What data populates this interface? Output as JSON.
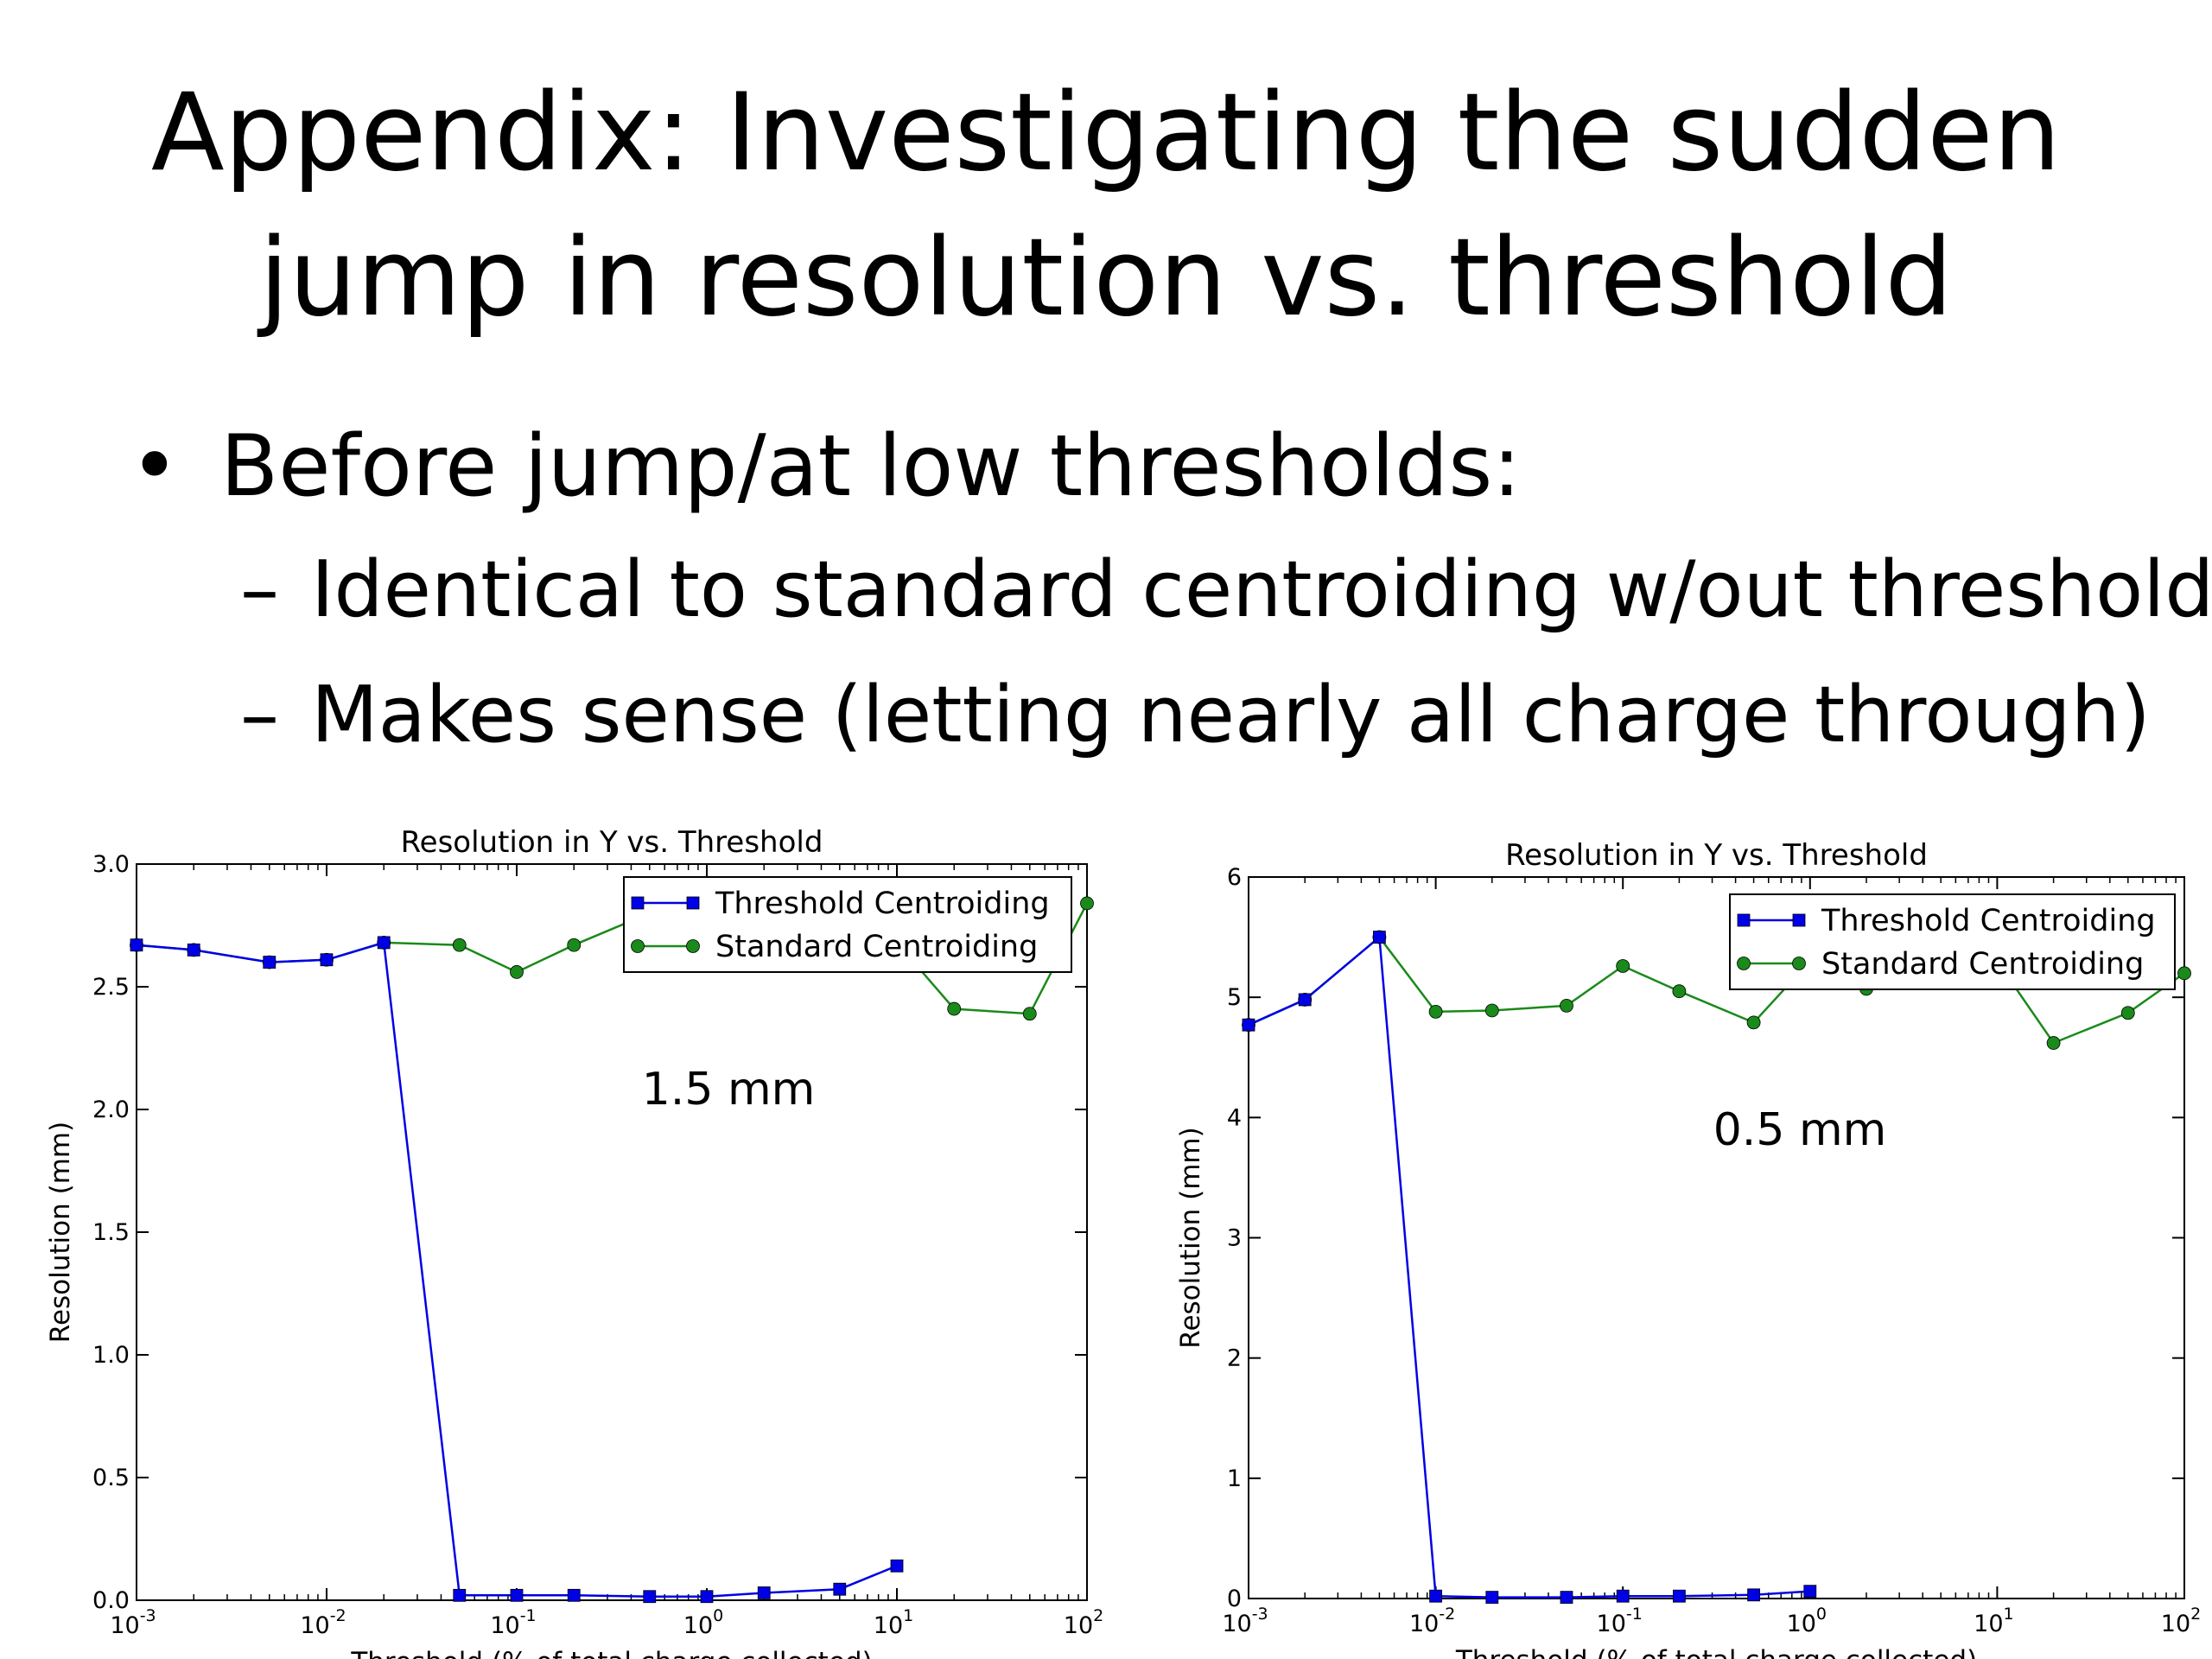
{
  "slide": {
    "title_line1": "Appendix: Investigating the sudden",
    "title_line2": "jump in resolution vs. threshold",
    "bullet": "Before jump/at low thresholds:",
    "sub_bullets": [
      "Identical to standard centroiding w/out threshold",
      "Makes sense (letting nearly all charge through)"
    ],
    "bullet_glyph": "•",
    "dash_glyph": "–"
  },
  "colors": {
    "threshold": "#0000e6",
    "standard": "#1a8a1a"
  },
  "chart_data": [
    {
      "type": "line",
      "title": "Resolution in Y vs. Threshold",
      "xlabel": "Threshold (% of total charge collected)",
      "ylabel": "Resolution (mm)",
      "xscale": "log",
      "xlim": [
        0.001,
        100
      ],
      "ylim": [
        0,
        3.0
      ],
      "xtick_values": [
        0.001,
        0.01,
        0.1,
        1,
        10,
        100
      ],
      "xtick_bases": [
        "10",
        "10",
        "10",
        "10",
        "10",
        "10"
      ],
      "xtick_exponents": [
        "-3",
        "-2",
        "-1",
        "0",
        "1",
        "2"
      ],
      "ytick_values": [
        0,
        0.5,
        1.0,
        1.5,
        2.0,
        2.5,
        3.0
      ],
      "ytick_labels": [
        "0.0",
        "0.5",
        "1.0",
        "1.5",
        "2.0",
        "2.5",
        "3.0"
      ],
      "annotation": "1.5 mm",
      "legend_position": "top-right",
      "series": [
        {
          "name": "Threshold Centroiding",
          "marker": "square",
          "x": [
            0.001,
            0.002,
            0.005,
            0.01,
            0.02,
            0.05,
            0.1,
            0.2,
            0.5,
            1,
            2,
            5,
            10
          ],
          "y": [
            2.67,
            2.65,
            2.6,
            2.61,
            2.68,
            0.02,
            0.02,
            0.02,
            0.015,
            0.015,
            0.03,
            0.045,
            0.14
          ]
        },
        {
          "name": "Standard Centroiding",
          "marker": "circle",
          "x": [
            0.001,
            0.002,
            0.005,
            0.01,
            0.02,
            0.05,
            0.1,
            0.2,
            0.5,
            1,
            2,
            5,
            10,
            20,
            50,
            100
          ],
          "y": [
            2.67,
            2.65,
            2.6,
            2.61,
            2.68,
            2.67,
            2.56,
            2.67,
            2.8,
            2.72,
            2.7,
            2.6,
            2.68,
            2.41,
            2.39,
            2.84
          ]
        }
      ]
    },
    {
      "type": "line",
      "title": "Resolution in Y vs. Threshold",
      "xlabel": "Threshold (% of total charge collected)",
      "ylabel": "Resolution (mm)",
      "xscale": "log",
      "xlim": [
        0.001,
        100
      ],
      "ylim": [
        0,
        6
      ],
      "xtick_values": [
        0.001,
        0.01,
        0.1,
        1,
        10,
        100
      ],
      "xtick_bases": [
        "10",
        "10",
        "10",
        "10",
        "10",
        "10"
      ],
      "xtick_exponents": [
        "-3",
        "-2",
        "-1",
        "0",
        "1",
        "2"
      ],
      "ytick_values": [
        0,
        1,
        2,
        3,
        4,
        5,
        6
      ],
      "ytick_labels": [
        "0",
        "1",
        "2",
        "3",
        "4",
        "5",
        "6"
      ],
      "annotation": "0.5 mm",
      "legend_position": "top-right",
      "series": [
        {
          "name": "Threshold Centroiding",
          "marker": "square",
          "x": [
            0.001,
            0.002,
            0.005,
            0.01,
            0.02,
            0.05,
            0.1,
            0.2,
            0.5,
            1
          ],
          "y": [
            4.77,
            4.98,
            5.5,
            0.02,
            0.01,
            0.01,
            0.02,
            0.02,
            0.03,
            0.06
          ]
        },
        {
          "name": "Standard Centroiding",
          "marker": "circle",
          "x": [
            0.001,
            0.002,
            0.005,
            0.01,
            0.02,
            0.05,
            0.1,
            0.2,
            0.5,
            1,
            2,
            5,
            10,
            20,
            50,
            100
          ],
          "y": [
            4.77,
            4.98,
            5.5,
            4.88,
            4.89,
            4.93,
            5.26,
            5.05,
            4.79,
            5.3,
            5.07,
            5.25,
            5.3,
            4.62,
            4.87,
            5.2
          ]
        }
      ]
    }
  ]
}
